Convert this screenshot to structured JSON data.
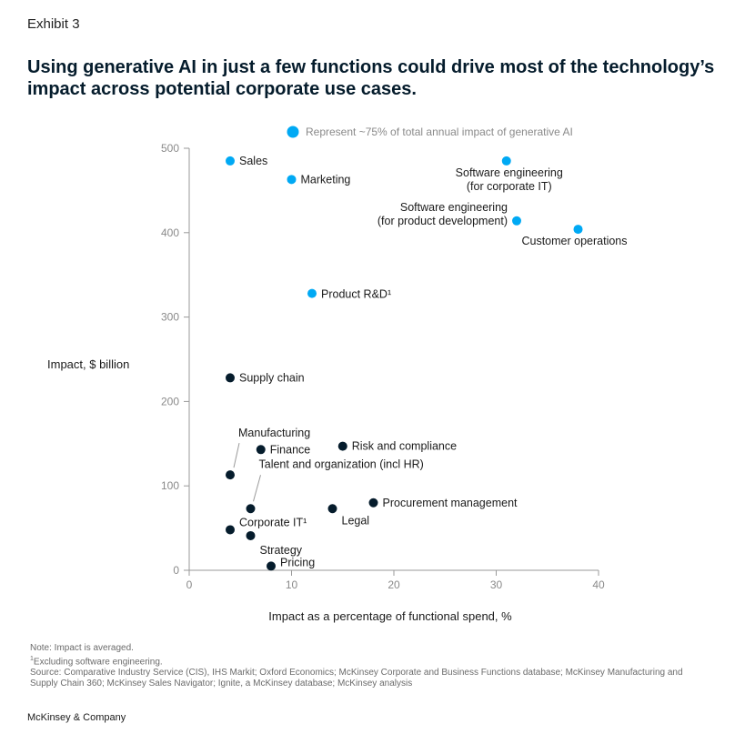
{
  "exhibit_label": "Exhibit 3",
  "title": "Using generative AI in just a few functions could drive most of the technology’s impact across potential corporate use cases.",
  "colors": {
    "highlight": "#00a9f4",
    "default": "#051c2c",
    "axis": "#999999",
    "tick_text": "#8a8a8a"
  },
  "chart_data": {
    "type": "scatter",
    "title": "",
    "xlabel": "Impact as a percentage of functional spend, %",
    "ylabel": "Impact, $ billion",
    "xlim": [
      0,
      40
    ],
    "ylim": [
      0,
      500
    ],
    "xticks": [
      0,
      10,
      20,
      30,
      40
    ],
    "yticks": [
      0,
      100,
      200,
      300,
      400,
      500
    ],
    "grid": false,
    "legend": {
      "label": "Represent ~75% of total annual impact of generative AI",
      "placement": "top"
    },
    "points": [
      {
        "name": "Sales",
        "x": 4,
        "y": 485,
        "highlight": true
      },
      {
        "name": "Marketing",
        "x": 10,
        "y": 463,
        "highlight": true
      },
      {
        "name": "Software engineering\n(for corporate IT)",
        "x": 31,
        "y": 485,
        "highlight": true
      },
      {
        "name": "Software engineering\n(for product development)",
        "x": 32,
        "y": 414,
        "highlight": true
      },
      {
        "name": "Customer operations",
        "x": 38,
        "y": 404,
        "highlight": true
      },
      {
        "name": "Product R&D¹",
        "x": 12,
        "y": 328,
        "highlight": true
      },
      {
        "name": "Supply chain",
        "x": 4,
        "y": 228,
        "highlight": false
      },
      {
        "name": "Manufacturing",
        "x": 4,
        "y": 113,
        "highlight": false
      },
      {
        "name": "Finance",
        "x": 7,
        "y": 143,
        "highlight": false
      },
      {
        "name": "Risk and compliance",
        "x": 15,
        "y": 147,
        "highlight": false
      },
      {
        "name": "Talent and organization (incl HR)",
        "x": 6,
        "y": 73,
        "highlight": false
      },
      {
        "name": "Procurement management",
        "x": 18,
        "y": 80,
        "highlight": false
      },
      {
        "name": "Legal",
        "x": 14,
        "y": 73,
        "highlight": false
      },
      {
        "name": "Corporate IT¹",
        "x": 4,
        "y": 48,
        "highlight": false
      },
      {
        "name": "Strategy",
        "x": 6,
        "y": 41,
        "highlight": false
      },
      {
        "name": "Pricing",
        "x": 8,
        "y": 5,
        "highlight": false
      }
    ]
  },
  "footnotes": {
    "note": "Note: Impact is averaged.",
    "footnote1": "Excluding software engineering.",
    "source": "Source: Comparative Industry Service (CIS), IHS Markit; Oxford Economics; McKinsey Corporate and Business Functions database; McKinsey Manufacturing and Supply Chain 360; McKinsey Sales Navigator; Ignite, a McKinsey database; McKinsey analysis"
  },
  "brand": "McKinsey & Company"
}
